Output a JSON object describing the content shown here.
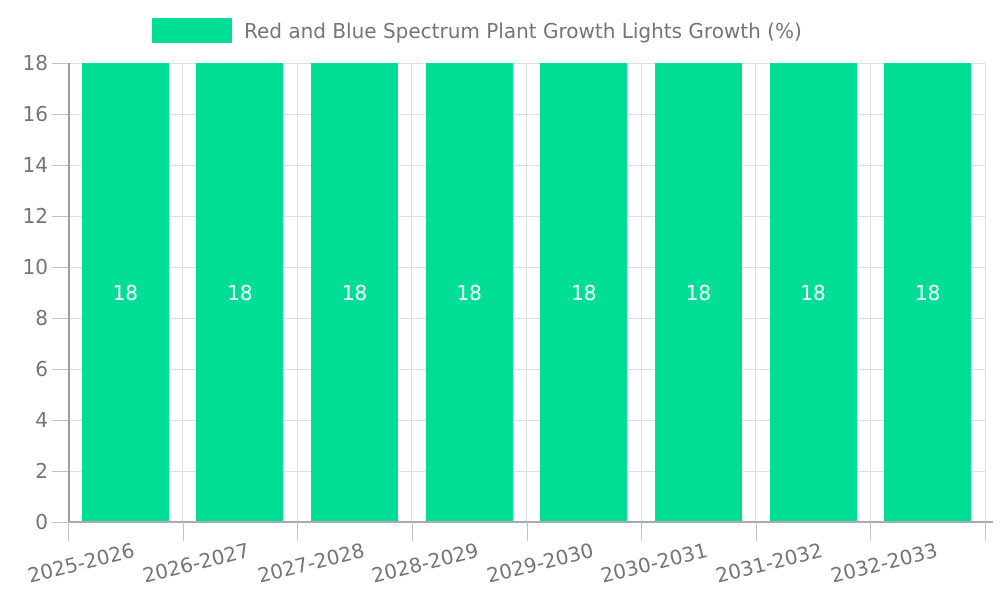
{
  "legend": {
    "label": "Red and Blue Spectrum Plant Growth Lights Growth (%)"
  },
  "colors": {
    "bar": "#00de96",
    "bar_label": "#ffffff",
    "axis_text": "#757575",
    "grid_line": "#dedede",
    "axis_line": "#a6a6a6",
    "background": "#ffffff"
  },
  "chart_data": {
    "type": "bar",
    "title": "Red and Blue Spectrum Plant Growth Lights Growth (%)",
    "categories": [
      "2025-2026",
      "2026-2027",
      "2027-2028",
      "2028-2029",
      "2029-2030",
      "2030-2031",
      "2031-2032",
      "2032-2033"
    ],
    "values": [
      18,
      18,
      18,
      18,
      18,
      18,
      18,
      18
    ],
    "bar_labels": [
      "18",
      "18",
      "18",
      "18",
      "18",
      "18",
      "18",
      "18"
    ],
    "xlabel": "",
    "ylabel": "",
    "ylim": [
      0,
      18
    ],
    "y_ticks": [
      0,
      2,
      4,
      6,
      8,
      10,
      12,
      14,
      16,
      18
    ],
    "grid": true,
    "legend_position": "top",
    "x_label_rotation_deg": -14
  }
}
